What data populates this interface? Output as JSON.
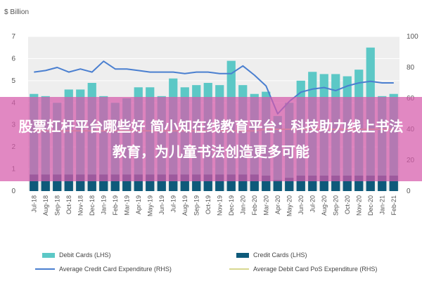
{
  "banner": {
    "text": "股票杠杆平台哪些好 简小知在线教育平台：科技助力线上书法教育，为儿童书法创造更多可能"
  },
  "colors": {
    "debit_cards": "#5cc8c6",
    "credit_cards": "#0e5a7a",
    "avg_credit_exp": "#4a7fd0",
    "avg_debit_pos_exp": "#d8d890",
    "banner_bg": "#d65aaa",
    "plot_bg": "#eeeeee"
  },
  "chart_data": {
    "type": "bar",
    "y_left_label": "$ Billion",
    "y_left_ticks": [
      "0",
      "1",
      "2",
      "3",
      "4",
      "5",
      "6",
      "7"
    ],
    "y_left_range": [
      0,
      7
    ],
    "y_right_ticks": [
      "0",
      "20",
      "40",
      "60",
      "80",
      "100"
    ],
    "y_right_range": [
      0,
      100
    ],
    "grid": true,
    "legend_position": "bottom",
    "categories": [
      "Jul-18",
      "Aug-18",
      "Sep-18",
      "Oct-18",
      "Nov-18",
      "Dec-18",
      "Jan-19",
      "Feb-19",
      "Mar-19",
      "Apr-19",
      "May-19",
      "Jun-19",
      "Jul-19",
      "Aug-19",
      "Sep-19",
      "Oct-19",
      "Nov-19",
      "Dec-19",
      "Jan-20",
      "Feb-20",
      "Mar-20",
      "Apr-20",
      "May-20",
      "Jun-20",
      "Jul-20",
      "Aug-20",
      "Sep-20",
      "Oct-20",
      "Nov-20",
      "Dec-20",
      "Jan-21",
      "Feb-21"
    ],
    "x_tick_labels": [
      "Jul-18",
      "Aug-18",
      "Sep-18",
      "Oct-18",
      "Nov-18",
      "Dec-18",
      "Jan-19",
      "Feb-19",
      "Mar-19",
      "Apr-19",
      "May-19",
      "Jun-19",
      "Jul-19",
      "Aug-19",
      "Sep-19",
      "Oct-19",
      "Nov-19",
      "Dec-19",
      "Jan-20",
      "Feb-20",
      "Mar-20",
      "Apr-20",
      "May-20",
      "Jun-20",
      "Jul-20",
      "Aug-20",
      "Sep-20",
      "Oct-20",
      "Nov-20",
      "Dec-20",
      "Jan-21",
      "Feb-21"
    ],
    "series": [
      {
        "name": "Debit Cards (LHS)",
        "kind": "bar",
        "axis": "left",
        "values": [
          4.4,
          4.3,
          4.0,
          4.6,
          4.6,
          4.9,
          4.3,
          4.0,
          4.2,
          4.7,
          4.7,
          4.3,
          5.1,
          4.7,
          4.8,
          4.9,
          4.8,
          5.9,
          4.8,
          4.4,
          4.5,
          3.4,
          4.0,
          5.0,
          5.4,
          5.3,
          5.3,
          5.2,
          5.5,
          6.5,
          4.3,
          4.4
        ]
      },
      {
        "name": "Credit Cards (LHS)",
        "kind": "bar",
        "axis": "left",
        "values": [
          0.75,
          0.75,
          0.75,
          0.75,
          0.75,
          0.75,
          0.75,
          0.75,
          0.75,
          0.75,
          0.75,
          0.75,
          0.75,
          0.75,
          0.75,
          0.75,
          0.75,
          0.75,
          0.75,
          0.75,
          0.7,
          0.5,
          0.6,
          0.7,
          0.7,
          0.7,
          0.7,
          0.7,
          0.7,
          0.7,
          0.7,
          0.7
        ]
      },
      {
        "name": "Average Credit Card Expenditure (RHS)",
        "kind": "line",
        "axis": "right",
        "values": [
          77,
          78,
          80,
          77,
          79,
          77,
          84,
          79,
          79,
          78,
          77,
          77,
          77,
          76,
          77,
          77,
          76,
          76,
          81,
          75,
          68,
          50,
          58,
          64,
          66,
          67,
          65,
          68,
          70,
          71,
          70,
          70
        ]
      },
      {
        "name": "Average Debit Card PoS Expenditure (RHS)",
        "kind": "line",
        "axis": "right",
        "values": [
          39,
          39,
          39,
          39,
          39,
          39,
          39,
          39,
          39,
          39,
          39,
          39,
          39,
          39,
          39,
          39,
          39,
          39,
          39,
          39,
          40,
          40,
          40,
          40,
          40,
          40,
          40,
          40,
          40,
          40,
          40,
          40
        ]
      }
    ]
  }
}
